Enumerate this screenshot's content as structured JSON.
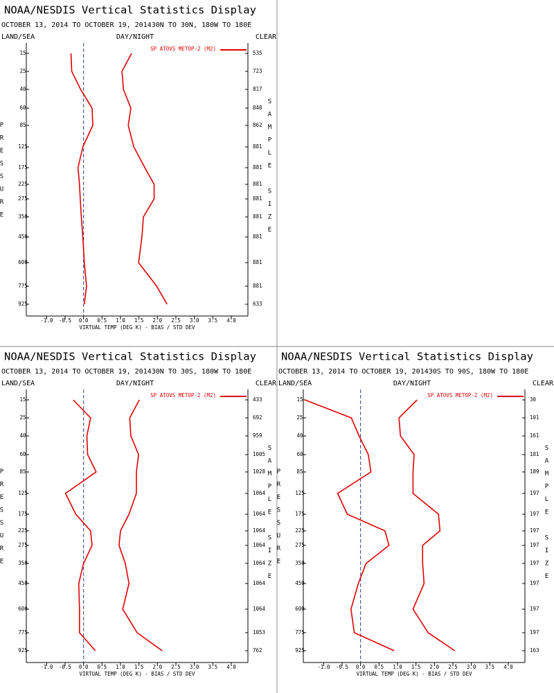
{
  "chart_data": [
    {
      "type": "line",
      "title": "NOAA/NESDIS Vertical Statistics Display",
      "subtitle": "OCTOBER 13, 2014 TO OCTOBER 19, 201430N TO 30N, 180W TO 180E",
      "left_header": "LAND/SEA",
      "center_header": "DAY/NIGHT",
      "right_header": "CLEAR",
      "y_label": "PRESSURE",
      "y2_label": "SAMPLE SIZE",
      "x_label": "VIRTUAL TEMP (DEG K) - BIAS / STD DEV",
      "categories": [
        15,
        25,
        40,
        60,
        85,
        125,
        175,
        225,
        275,
        350,
        450,
        600,
        775,
        925
      ],
      "sample_size": [
        535,
        723,
        817,
        848,
        862,
        881,
        881,
        881,
        881,
        881,
        881,
        881,
        881,
        633
      ],
      "series": [
        {
          "name": "SP ATOVS METOP-2 (M2)",
          "color": "#e00000",
          "bias": [
            -0.34,
            -0.32,
            -0.08,
            0.23,
            0.25,
            -0.02,
            -0.15,
            -0.11,
            -0.09,
            -0.06,
            -0.02,
            0.02,
            0.08,
            0.02
          ],
          "std_dev": [
            1.3,
            1.04,
            1.08,
            1.28,
            1.21,
            1.36,
            1.66,
            1.91,
            1.91,
            1.62,
            1.58,
            1.49,
            1.98,
            2.26
          ]
        }
      ],
      "xlim": [
        -1.55,
        4.45
      ],
      "xticks": [
        {
          "value": -1,
          "label": "-1.0"
        },
        -0.5,
        {
          "value": 0,
          "label": "0.0"
        },
        0.5,
        {
          "value": 1,
          "label": "1.0"
        },
        1.5,
        {
          "value": 2,
          "label": "2.0"
        },
        2.5,
        {
          "value": 3,
          "label": "3.0"
        },
        3.5,
        {
          "value": 4,
          "label": "4.0"
        }
      ]
    },
    {
      "type": "line",
      "title": "NOAA/NESDIS Vertical Statistics Display",
      "subtitle": "OCTOBER 13, 2014 TO OCTOBER 19, 201430N TO 30S, 180W TO 180E",
      "left_header": "LAND/SEA",
      "center_header": "DAY/NIGHT",
      "right_header": "CLEAR",
      "y_label": "PRESSURE",
      "y2_label": "SAMPLE SIZE",
      "x_label": "VIRTUAL TEMP (DEG K) - BIAS / STD DEV",
      "categories": [
        15,
        25,
        40,
        60,
        85,
        125,
        175,
        225,
        275,
        350,
        450,
        600,
        775,
        925
      ],
      "sample_size": [
        433,
        692,
        959,
        1005,
        1028,
        1064,
        1064,
        1064,
        1064,
        1064,
        1064,
        1064,
        1053,
        762
      ],
      "series": [
        {
          "name": "SP ATOVS METOP-2 (M2)",
          "color": "#e00000",
          "bias": [
            -0.28,
            0.19,
            0.09,
            0.11,
            0.34,
            -0.49,
            -0.21,
            0.19,
            0.23,
            0.0,
            -0.13,
            -0.11,
            -0.11,
            0.32
          ],
          "std_dev": [
            1.51,
            1.25,
            1.28,
            1.49,
            1.43,
            1.43,
            1.23,
            1.0,
            0.96,
            1.13,
            1.23,
            1.06,
            1.45,
            2.13
          ]
        }
      ],
      "xlim": [
        -1.55,
        4.45
      ],
      "xticks": [
        {
          "value": -1,
          "label": "-1.0"
        },
        -0.5,
        {
          "value": 0,
          "label": "0.0"
        },
        0.5,
        {
          "value": 1,
          "label": "1.0"
        },
        1.5,
        {
          "value": 2,
          "label": "2.0"
        },
        2.5,
        {
          "value": 3,
          "label": "3.0"
        },
        3.5,
        {
          "value": 4,
          "label": "4.0"
        }
      ]
    },
    {
      "type": "line",
      "title": "NOAA/NESDIS Vertical Statistics Display",
      "subtitle": "OCTOBER 13, 2014 TO OCTOBER 19, 201430S TO 90S, 180W TO 180E",
      "left_header": "LAND/SEA",
      "center_header": "DAY/NIGHT",
      "right_header": "CLEAR",
      "y_label": "PRESSURE",
      "y2_label": "SAMPLE SIZE",
      "x_label": "VIRTUAL TEMP (DEG K) - BIAS / STD DEV",
      "categories": [
        15,
        25,
        40,
        60,
        85,
        125,
        175,
        225,
        275,
        350,
        450,
        600,
        775,
        925
      ],
      "sample_size": [
        30,
        101,
        161,
        181,
        189,
        197,
        197,
        197,
        197,
        197,
        197,
        197,
        197,
        163
      ],
      "series": [
        {
          "name": "SP ATOVS METOP-2 (M2)",
          "color": "#e00000",
          "bias": [
            -1.51,
            -0.25,
            -0.04,
            0.21,
            0.28,
            -0.62,
            -0.36,
            0.66,
            0.77,
            0.15,
            -0.06,
            -0.26,
            -0.17,
            0.91
          ],
          "std_dev": [
            1.53,
            1.04,
            1.08,
            1.45,
            1.42,
            1.42,
            2.11,
            2.15,
            1.68,
            1.68,
            1.72,
            1.42,
            1.83,
            2.55
          ]
        }
      ],
      "xlim": [
        -1.55,
        4.45
      ],
      "xticks": [
        {
          "value": -1,
          "label": "-1.0"
        },
        -0.5,
        {
          "value": 0,
          "label": "0.0"
        },
        0.5,
        {
          "value": 1,
          "label": "1.0"
        },
        1.5,
        {
          "value": 2,
          "label": "2.0"
        },
        2.5,
        {
          "value": 3,
          "label": "3.0"
        },
        3.5,
        {
          "value": 4,
          "label": "4.0"
        }
      ]
    }
  ]
}
